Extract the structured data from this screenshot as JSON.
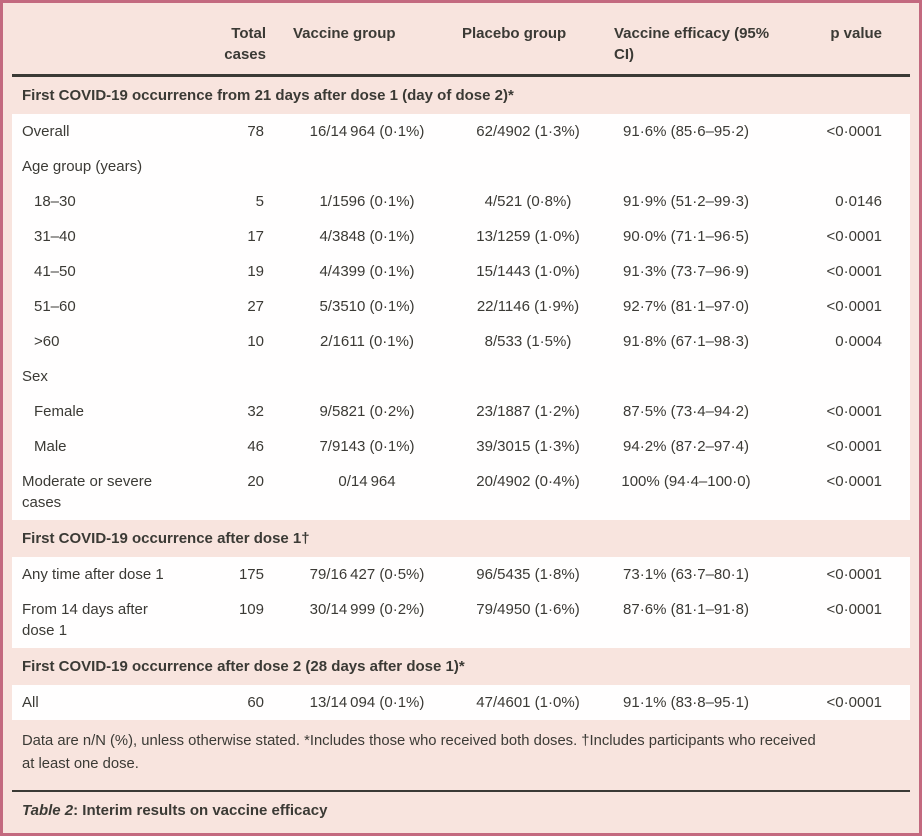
{
  "accent_colors": {
    "background_pink": "#f8e4de",
    "border_rose": "#c3697f",
    "row_white": "#fffefe",
    "text_dark": "#3b3a35"
  },
  "table": {
    "headers": {
      "label": "",
      "total": "Total cases",
      "vaccine": "Vaccine group",
      "placebo": "Placebo group",
      "efficacy": "Vaccine efficacy (95% CI)",
      "p": "p value"
    },
    "sections": [
      {
        "title": "First COVID-19 occurrence from 21 days after dose 1 (day of dose 2)*",
        "rows": [
          {
            "label": "Overall",
            "indent": 0,
            "total": "78",
            "vaccine": "16/14 964 (0·1%)",
            "placebo": "62/4902 (1·3%)",
            "efficacy": "91·6% (85·6–95·2)",
            "p": "<0·0001"
          },
          {
            "label": "Age group (years)",
            "indent": 0,
            "total": "",
            "vaccine": "",
            "placebo": "",
            "efficacy": "",
            "p": ""
          },
          {
            "label": "18–30",
            "indent": 1,
            "total": "5",
            "vaccine": "1/1596 (0·1%)",
            "placebo": "4/521 (0·8%)",
            "efficacy": "91·9% (51·2–99·3)",
            "p": "0·0146"
          },
          {
            "label": "31–40",
            "indent": 1,
            "total": "17",
            "vaccine": "4/3848 (0·1%)",
            "placebo": "13/1259 (1·0%)",
            "efficacy": "90·0% (71·1–96·5)",
            "p": "<0·0001"
          },
          {
            "label": "41–50",
            "indent": 1,
            "total": "19",
            "vaccine": "4/4399 (0·1%)",
            "placebo": "15/1443 (1·0%)",
            "efficacy": "91·3% (73·7–96·9)",
            "p": "<0·0001"
          },
          {
            "label": "51–60",
            "indent": 1,
            "total": "27",
            "vaccine": "5/3510 (0·1%)",
            "placebo": "22/1146 (1·9%)",
            "efficacy": "92·7% (81·1–97·0)",
            "p": "<0·0001"
          },
          {
            "label": ">60",
            "indent": 1,
            "total": "10",
            "vaccine": "2/1611 (0·1%)",
            "placebo": "8/533 (1·5%)",
            "efficacy": "91·8% (67·1–98·3)",
            "p": "0·0004"
          },
          {
            "label": "Sex",
            "indent": 0,
            "total": "",
            "vaccine": "",
            "placebo": "",
            "efficacy": "",
            "p": ""
          },
          {
            "label": "Female",
            "indent": 1,
            "total": "32",
            "vaccine": "9/5821 (0·2%)",
            "placebo": "23/1887 (1·2%)",
            "efficacy": "87·5% (73·4–94·2)",
            "p": "<0·0001"
          },
          {
            "label": "Male",
            "indent": 1,
            "total": "46",
            "vaccine": "7/9143 (0·1%)",
            "placebo": "39/3015 (1·3%)",
            "efficacy": "94·2% (87·2–97·4)",
            "p": "<0·0001"
          },
          {
            "label": "Moderate or severe cases",
            "indent": 0,
            "total": "20",
            "vaccine": "0/14 964",
            "placebo": "20/4902 (0·4%)",
            "efficacy": "100% (94·4–100·0)",
            "p": "<0·0001"
          }
        ]
      },
      {
        "title": "First COVID-19 occurrence after dose 1†",
        "rows": [
          {
            "label": "Any time after dose 1",
            "indent": 0,
            "total": "175",
            "vaccine": "79/16 427 (0·5%)",
            "placebo": "96/5435 (1·8%)",
            "efficacy": "73·1% (63·7–80·1)",
            "p": "<0·0001"
          },
          {
            "label": "From 14 days after dose 1",
            "indent": 0,
            "total": "109",
            "vaccine": "30/14 999 (0·2%)",
            "placebo": "79/4950 (1·6%)",
            "efficacy": "87·6% (81·1–91·8)",
            "p": "<0·0001"
          }
        ]
      },
      {
        "title": "First COVID-19 occurrence after dose 2 (28 days after dose 1)*",
        "rows": [
          {
            "label": "All",
            "indent": 0,
            "total": "60",
            "vaccine": "13/14 094 (0·1%)",
            "placebo": "47/4601 (1·0%)",
            "efficacy": "91·1% (83·8–95·1)",
            "p": "<0·0001"
          }
        ]
      }
    ]
  },
  "footnote": "Data are n/N (%), unless otherwise stated. *Includes those who received both doses. †Includes participants who received at least one dose.",
  "caption": {
    "prefix": "Table 2",
    "rest": ": Interim results on vaccine efficacy"
  }
}
